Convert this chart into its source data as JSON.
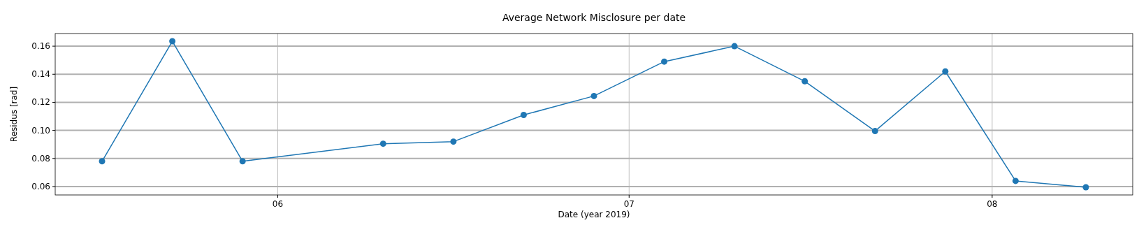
{
  "chart_data": {
    "type": "line",
    "title": "Average Network Misclosure per date",
    "xlabel": "Date (year 2019)",
    "ylabel": "Residus [rad]",
    "x": [
      "2019-05-17",
      "2019-05-23",
      "2019-05-29",
      "2019-06-10",
      "2019-06-16",
      "2019-06-22",
      "2019-06-28",
      "2019-07-04",
      "2019-07-10",
      "2019-07-16",
      "2019-07-22",
      "2019-07-28",
      "2019-08-03",
      "2019-08-09"
    ],
    "series": [
      {
        "color": "#1f77b4",
        "values": [
          0.078,
          0.1635,
          0.078,
          0.0905,
          0.092,
          0.111,
          0.1245,
          0.149,
          0.16,
          0.135,
          0.0995,
          0.142,
          0.064,
          0.0595
        ]
      }
    ],
    "xlim": [
      "2019-05-13",
      "2019-08-13"
    ],
    "xticks": [
      {
        "value": "2019-06-01",
        "label": "06"
      },
      {
        "value": "2019-07-01",
        "label": "07"
      },
      {
        "value": "2019-08-01",
        "label": "08"
      }
    ],
    "ylim": [
      0.054,
      0.169
    ],
    "yticks": [
      {
        "value": 0.06,
        "label": "0.06"
      },
      {
        "value": 0.08,
        "label": "0.08"
      },
      {
        "value": 0.1,
        "label": "0.10"
      },
      {
        "value": 0.12,
        "label": "0.12"
      },
      {
        "value": 0.14,
        "label": "0.14"
      },
      {
        "value": 0.16,
        "label": "0.16"
      }
    ],
    "grid": true,
    "marker": "circle",
    "line_style": "solid"
  }
}
